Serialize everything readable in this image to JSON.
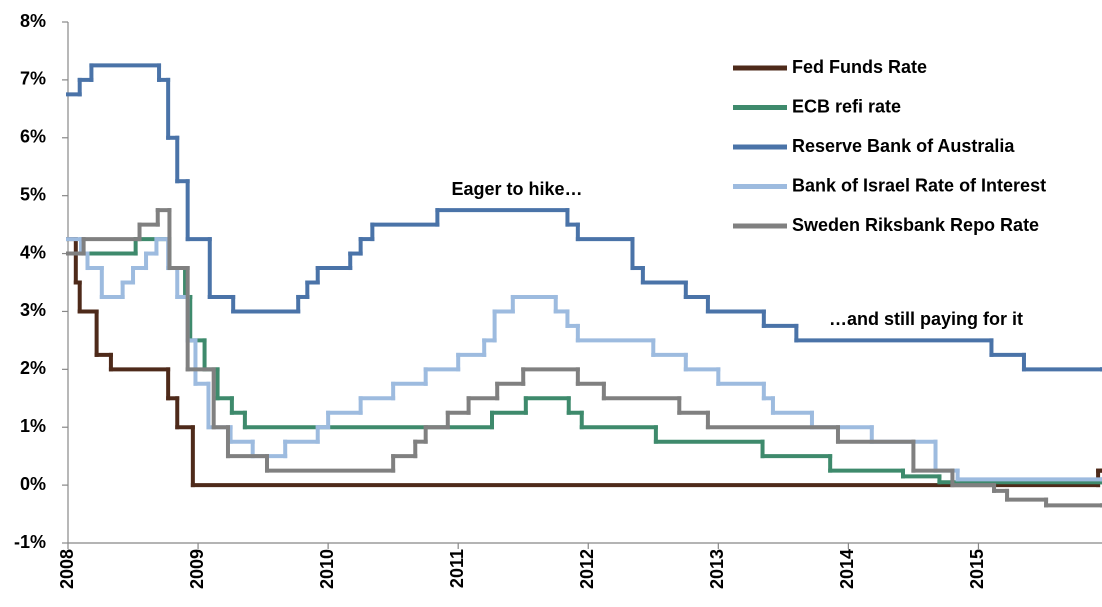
{
  "chart_data": {
    "type": "line",
    "step": true,
    "xlim": [
      2008,
      2015.95
    ],
    "xticks": [
      2008,
      2009,
      2010,
      2011,
      2012,
      2013,
      2014,
      2015
    ],
    "ylim": [
      -1,
      8
    ],
    "yticks": [
      {
        "value": -1,
        "label": "-1%"
      },
      {
        "value": 0,
        "label": "0%"
      },
      {
        "value": 1,
        "label": "1%"
      },
      {
        "value": 2,
        "label": "2%"
      },
      {
        "value": 3,
        "label": "3%"
      },
      {
        "value": 4,
        "label": "4%"
      },
      {
        "value": 5,
        "label": "5%"
      },
      {
        "value": 6,
        "label": "6%"
      },
      {
        "value": 7,
        "label": "7%"
      },
      {
        "value": 8,
        "label": "8%"
      }
    ],
    "grid": false,
    "legend": "upper right",
    "annotations": [
      "Eager to hike…",
      "…and still paying for it"
    ],
    "series": [
      {
        "name": "Fed Funds Rate",
        "color": "#4e2a1a",
        "x": [
          2008.0,
          2008.06,
          2008.09,
          2008.22,
          2008.33,
          2008.77,
          2008.84,
          2008.96,
          2015.92,
          2015.95
        ],
        "values": [
          4.25,
          3.5,
          3.0,
          2.25,
          2.0,
          1.5,
          1.0,
          0,
          0.25,
          0.25
        ]
      },
      {
        "name": "ECB refi rate",
        "color": "#3e8a6c",
        "x": [
          2008.0,
          2008.52,
          2008.78,
          2008.9,
          2008.94,
          2009.05,
          2009.15,
          2009.26,
          2009.36,
          2011.26,
          2011.52,
          2011.85,
          2011.95,
          2012.52,
          2013.34,
          2013.86,
          2014.42,
          2014.7,
          2015.95
        ],
        "values": [
          4.0,
          4.25,
          3.75,
          3.25,
          2.5,
          2.0,
          1.5,
          1.25,
          1.0,
          1.25,
          1.5,
          1.25,
          1.0,
          0.75,
          0.5,
          0.25,
          0.15,
          0.05,
          0.05
        ]
      },
      {
        "name": "Reserve Bank of Australia",
        "color": "#4a73a8",
        "x": [
          2008.0,
          2008.09,
          2008.18,
          2008.7,
          2008.77,
          2008.84,
          2008.92,
          2009.09,
          2009.27,
          2009.77,
          2009.84,
          2009.92,
          2010.17,
          2010.25,
          2010.34,
          2010.84,
          2011.84,
          2011.92,
          2012.34,
          2012.42,
          2012.75,
          2012.92,
          2013.35,
          2013.6,
          2015.1,
          2015.35,
          2015.95
        ],
        "values": [
          6.75,
          7.0,
          7.25,
          7.0,
          6.0,
          5.25,
          4.25,
          3.25,
          3.0,
          3.25,
          3.5,
          3.75,
          4.0,
          4.25,
          4.5,
          4.75,
          4.5,
          4.25,
          3.75,
          3.5,
          3.25,
          3.0,
          2.75,
          2.5,
          2.25,
          2.0,
          2.0
        ]
      },
      {
        "name": "Bank of Israel Rate of Interest",
        "color": "#9dbbdf",
        "x": [
          2008.0,
          2008.1,
          2008.15,
          2008.26,
          2008.42,
          2008.5,
          2008.6,
          2008.68,
          2008.77,
          2008.84,
          2008.92,
          2008.98,
          2009.08,
          2009.25,
          2009.42,
          2009.67,
          2009.92,
          2010.0,
          2010.25,
          2010.5,
          2010.75,
          2011.0,
          2011.2,
          2011.28,
          2011.42,
          2011.75,
          2011.84,
          2011.92,
          2012.5,
          2012.75,
          2013.0,
          2013.35,
          2013.42,
          2013.72,
          2014.18,
          2014.67,
          2014.84,
          2015.95
        ],
        "values": [
          4.25,
          4.0,
          3.75,
          3.25,
          3.5,
          3.75,
          4.0,
          4.25,
          3.75,
          3.25,
          2.5,
          1.75,
          1.0,
          0.75,
          0.5,
          0.75,
          1.0,
          1.25,
          1.5,
          1.75,
          2.0,
          2.25,
          2.5,
          3.0,
          3.25,
          3.0,
          2.75,
          2.5,
          2.25,
          2.0,
          1.75,
          1.5,
          1.25,
          1.0,
          0.75,
          0.25,
          0.1,
          0.1
        ]
      },
      {
        "name": "Sweden Riksbank Repo Rate",
        "color": "#808080",
        "x": [
          2008.0,
          2008.12,
          2008.55,
          2008.69,
          2008.78,
          2008.92,
          2009.12,
          2009.23,
          2009.53,
          2010.5,
          2010.67,
          2010.75,
          2010.92,
          2011.08,
          2011.3,
          2011.5,
          2011.92,
          2012.12,
          2012.7,
          2012.92,
          2013.92,
          2014.5,
          2014.8,
          2015.12,
          2015.22,
          2015.52,
          2015.95
        ],
        "values": [
          4.0,
          4.25,
          4.5,
          4.75,
          3.75,
          2.0,
          1.0,
          0.5,
          0.25,
          0.5,
          0.75,
          1.0,
          1.25,
          1.5,
          1.75,
          2.0,
          1.75,
          1.5,
          1.25,
          1.0,
          0.75,
          0.25,
          0.0,
          -0.1,
          -0.25,
          -0.35,
          -0.35
        ]
      }
    ]
  }
}
